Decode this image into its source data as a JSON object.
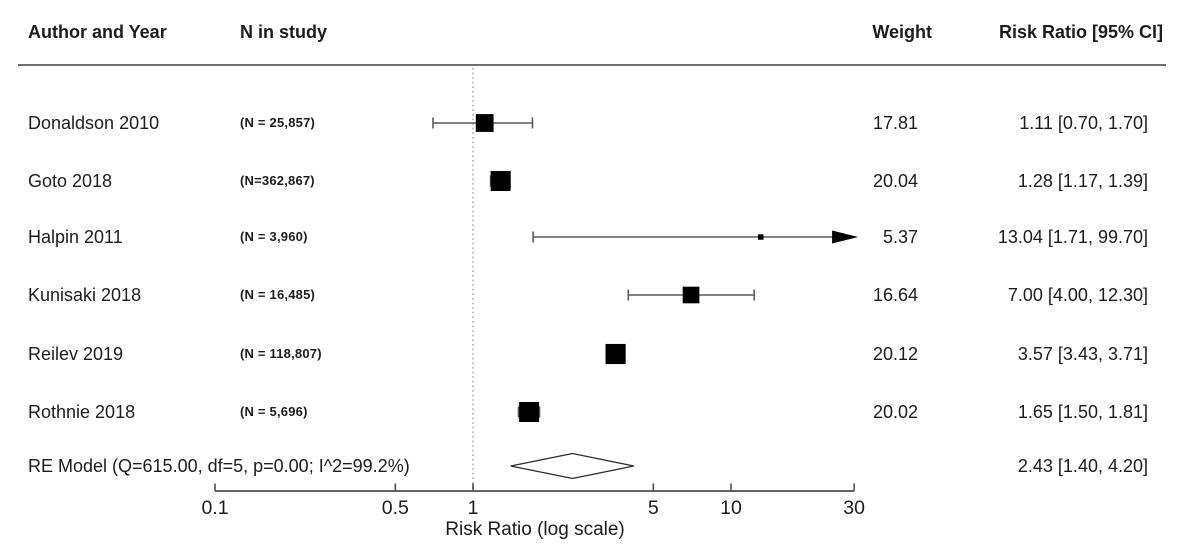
{
  "header": {
    "author_and_year": "Author and Year",
    "n_in_study": "N in study",
    "weight": "Weight",
    "risk_ratio": "Risk Ratio [95% CI]"
  },
  "chart_data": {
    "type": "forest",
    "xlabel": "Risk Ratio (log scale)",
    "x_scale": "log",
    "x_range": [
      0.1,
      30
    ],
    "x_ticks": [
      0.1,
      0.5,
      1,
      5,
      10,
      30
    ],
    "x_tick_labels": [
      "0.1",
      "0.5",
      "1",
      "5",
      "10",
      "30"
    ],
    "reference_line": 1,
    "studies": [
      {
        "author": "Donaldson 2010",
        "n_label": "(N = 25,857)",
        "weight": 17.81,
        "weight_label": "17.81",
        "rr": 1.11,
        "ci_low": 0.7,
        "ci_high": 1.7,
        "ci_label": "1.11 [0.70, 1.70]"
      },
      {
        "author": "Goto 2018",
        "n_label": "(N=362,867)",
        "weight": 20.04,
        "weight_label": "20.04",
        "rr": 1.28,
        "ci_low": 1.17,
        "ci_high": 1.39,
        "ci_label": "1.28 [1.17, 1.39]"
      },
      {
        "author": "Halpin 2011",
        "n_label": "(N = 3,960)",
        "weight": 5.37,
        "weight_label": "5.37",
        "rr": 13.04,
        "ci_low": 1.71,
        "ci_high": 99.7,
        "ci_label": "13.04 [1.71, 99.70]"
      },
      {
        "author": "Kunisaki 2018",
        "n_label": "(N = 16,485)",
        "weight": 16.64,
        "weight_label": "16.64",
        "rr": 7.0,
        "ci_low": 4.0,
        "ci_high": 12.3,
        "ci_label": "7.00 [4.00, 12.30]"
      },
      {
        "author": "Reilev 2019",
        "n_label": "(N = 118,807)",
        "weight": 20.12,
        "weight_label": "20.12",
        "rr": 3.57,
        "ci_low": 3.43,
        "ci_high": 3.71,
        "ci_label": "3.57 [3.43, 3.71]"
      },
      {
        "author": "Rothnie 2018",
        "n_label": "(N = 5,696)",
        "weight": 20.02,
        "weight_label": "20.02",
        "rr": 1.65,
        "ci_low": 1.5,
        "ci_high": 1.81,
        "ci_label": "1.65 [1.50, 1.81]"
      }
    ],
    "summary": {
      "label": "RE Model (Q=615.00, df=5, p=0.00; I^2=99.2%)",
      "rr": 2.43,
      "ci_low": 1.4,
      "ci_high": 4.2,
      "ci_label": "2.43 [1.40, 4.20]"
    },
    "colors": {
      "marker": "#000000",
      "ci_line": "#5a5a5a",
      "axis": "#4d4d4d",
      "reference_line": "#9b9b9b",
      "diamond_fill": "#ffffff",
      "diamond_stroke": "#2b2b2b",
      "text": "#1c1c1c",
      "rule": "#6e6e6e"
    }
  }
}
